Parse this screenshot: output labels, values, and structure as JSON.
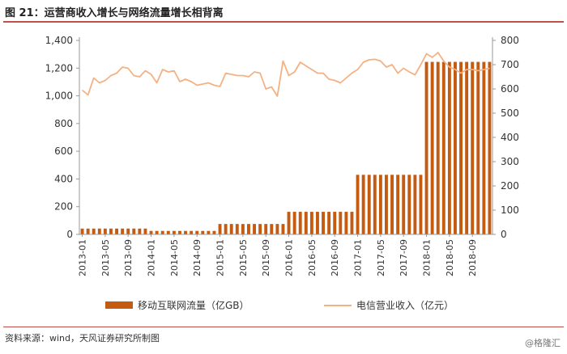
{
  "header": {
    "title": "图 21：运营商收入增长与网络流量增长相背离"
  },
  "footer": {
    "source": "资料来源：wind，天风证券研究所制图",
    "watermark": "@格隆汇"
  },
  "chart_data": {
    "type": "bar+line",
    "y_left": {
      "min": 0,
      "max": 1400,
      "ticks": [
        "0",
        "200",
        "400",
        "600",
        "800",
        "1,000",
        "1,200",
        "1,400"
      ]
    },
    "y_right": {
      "min": 0,
      "max": 800,
      "ticks": [
        "0",
        "100",
        "200",
        "300",
        "400",
        "500",
        "600",
        "700",
        "800"
      ]
    },
    "x_tick_labels": [
      "2013-01",
      "2013-05",
      "2013-09",
      "2014-01",
      "2014-05",
      "2014-09",
      "2015-01",
      "2015-05",
      "2015-09",
      "2016-01",
      "2016-05",
      "2016-09",
      "2017-01",
      "2017-05",
      "2017-09",
      "2018-01",
      "2018-05",
      "2018-09"
    ],
    "legend": {
      "bar": "移动互联网流量（亿GB）",
      "line": "电信营业收入（亿元）",
      "position": "bottom"
    },
    "colors": {
      "bar": "#c55a11",
      "line": "#f4b183",
      "axis": "#999999"
    },
    "bar_series": {
      "name": "移动互联网流量（亿GB）",
      "values": [
        42,
        42,
        42,
        42,
        42,
        42,
        42,
        42,
        42,
        42,
        42,
        42,
        25,
        25,
        25,
        25,
        25,
        25,
        25,
        25,
        25,
        25,
        25,
        25,
        75,
        75,
        75,
        75,
        75,
        75,
        75,
        75,
        75,
        75,
        75,
        75,
        163,
        163,
        163,
        163,
        163,
        163,
        163,
        163,
        163,
        163,
        163,
        163,
        430,
        430,
        430,
        430,
        430,
        430,
        430,
        430,
        430,
        430,
        430,
        430,
        1245,
        1245,
        1245,
        1245,
        1245,
        1245,
        1245,
        1245,
        1245,
        1245,
        1245,
        1245
      ]
    },
    "line_series": {
      "name": "电信营业收入（亿元）",
      "values": [
        595,
        575,
        645,
        625,
        635,
        655,
        665,
        690,
        685,
        655,
        650,
        675,
        660,
        625,
        680,
        670,
        675,
        630,
        640,
        630,
        615,
        620,
        625,
        615,
        610,
        665,
        660,
        655,
        655,
        650,
        670,
        665,
        600,
        608,
        570,
        715,
        655,
        670,
        710,
        695,
        680,
        665,
        665,
        640,
        635,
        625,
        645,
        665,
        680,
        710,
        720,
        722,
        715,
        690,
        700,
        665,
        685,
        670,
        658,
        700,
        745,
        730,
        750,
        715,
        690,
        680,
        665,
        680,
        680,
        675,
        680,
        685
      ]
    }
  }
}
